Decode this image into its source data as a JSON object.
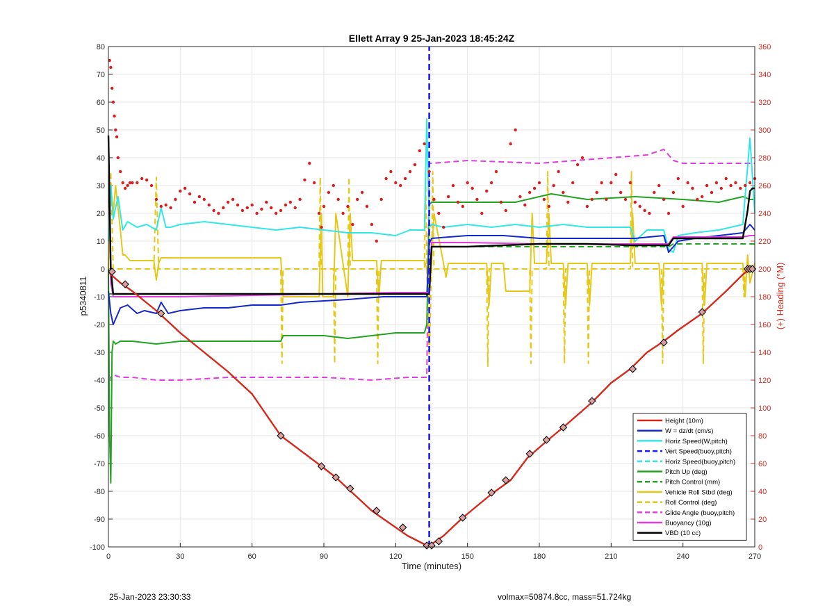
{
  "chart_data": {
    "type": "line",
    "title": "Ellett Array 9 25-Jan-2023 18:45:24Z",
    "xlabel": "Time (minutes)",
    "ylabel": "p5340811",
    "y2label": "(+) Heading (°M)",
    "xlim": [
      0,
      270
    ],
    "ylim": [
      -100,
      80
    ],
    "y2lim": [
      0,
      360
    ],
    "xticks": [
      "0",
      "30",
      "60",
      "90",
      "120",
      "150",
      "180",
      "210",
      "240",
      "270"
    ],
    "yticks": [
      "-100",
      "-90",
      "-80",
      "-70",
      "-60",
      "-50",
      "-40",
      "-30",
      "-20",
      "-10",
      "0",
      "10",
      "20",
      "30",
      "40",
      "50",
      "60",
      "70",
      "80"
    ],
    "y2ticks": [
      "0",
      "20",
      "40",
      "60",
      "80",
      "100",
      "120",
      "140",
      "160",
      "180",
      "200",
      "220",
      "240",
      "260",
      "280",
      "300",
      "320",
      "340",
      "360"
    ],
    "grid": true,
    "legend_position": "lower-right",
    "colors": {
      "height": "#d42a1c",
      "w": "#1428c8",
      "horiz": "#33e6e6",
      "vert_buoy": "#1a1aff",
      "horiz_buoy": "#33e6e6",
      "pitch": "#22a322",
      "pitch_ctrl": "#22a322",
      "roll": "#e5c81a",
      "roll_ctrl": "#e5c81a",
      "glide": "#e03ce0",
      "buoy": "#e03ce0",
      "vbd": "#000000",
      "heading": "#e01b1b"
    },
    "series": [
      {
        "name": "Height (10m)",
        "key": "height",
        "dash": false,
        "x": [
          0,
          1,
          5,
          10,
          20,
          30,
          40,
          50,
          60,
          72,
          89,
          95,
          100,
          110,
          120,
          125,
          133,
          135,
          140,
          148,
          160,
          168,
          175,
          183,
          190,
          202,
          210,
          218,
          225,
          232,
          238,
          248,
          258,
          265,
          268
        ],
        "y": [
          -1,
          -2,
          -5,
          -8,
          -15,
          -23,
          -30,
          -37,
          -45,
          -60,
          -71,
          -75,
          -79,
          -87,
          -93,
          -96,
          -99.5,
          -99,
          -96,
          -89.5,
          -81,
          -76,
          -68,
          -62,
          -57,
          -48,
          -41,
          -36,
          -30,
          -26,
          -22,
          -16,
          -8,
          -2,
          0
        ]
      },
      {
        "name": "W = dz/dt (cm/s)",
        "key": "w",
        "dash": false,
        "x": [
          0,
          1,
          2,
          5,
          8,
          12,
          15,
          20,
          22,
          25,
          30,
          40,
          50,
          60,
          72,
          80,
          100,
          115,
          125,
          132,
          133,
          134,
          135,
          150,
          165,
          180,
          200,
          220,
          232,
          234,
          236,
          238,
          245,
          255,
          265,
          268,
          270
        ],
        "y": [
          -8,
          -16,
          -20,
          -14,
          -13,
          -16,
          -15,
          -16,
          -12,
          -16,
          -15,
          -14,
          -14,
          -13,
          -13,
          -12,
          -11,
          -10,
          -10,
          -10,
          -10,
          9,
          11,
          12,
          12,
          11,
          11,
          11,
          12,
          6,
          8,
          10,
          11,
          12,
          13,
          16,
          14
        ]
      },
      {
        "name": "Horiz Speed(W,pitch)",
        "key": "horiz",
        "dash": false,
        "x": [
          0,
          1,
          2,
          4,
          6,
          8,
          12,
          16,
          20,
          22,
          24,
          26,
          30,
          40,
          50,
          60,
          70,
          80,
          90,
          100,
          110,
          120,
          126,
          132,
          133,
          134,
          135,
          140,
          150,
          160,
          170,
          180,
          190,
          200,
          210,
          218,
          220,
          225,
          232,
          234,
          236,
          238,
          245,
          255,
          265,
          268,
          270
        ],
        "y": [
          10,
          30,
          18,
          26,
          14,
          17,
          15,
          16,
          14,
          22,
          15,
          15,
          16,
          17,
          16,
          15,
          14,
          15,
          14,
          13,
          13,
          12,
          14,
          14,
          54,
          15,
          16,
          15,
          16,
          15,
          16,
          15,
          16,
          15,
          15,
          15,
          10,
          14,
          14,
          7,
          6,
          12,
          13,
          14,
          16,
          47,
          20
        ]
      },
      {
        "name": "Vert Speed(buoy,pitch)",
        "key": "vert_buoy",
        "dash": true,
        "x": [
          134,
          134
        ],
        "y": [
          -100,
          80
        ]
      },
      {
        "name": "Horiz Speed(buoy,pitch)",
        "key": "horiz_buoy",
        "dash": true,
        "x": [],
        "y": []
      },
      {
        "name": "Pitch Up (deg)",
        "key": "pitch",
        "dash": false,
        "x": [
          0,
          0.5,
          1,
          1.5,
          2,
          3,
          5,
          10,
          20,
          30,
          50,
          72,
          73,
          90,
          100,
          110,
          120,
          125,
          132,
          133,
          134,
          135,
          150,
          170,
          185,
          200,
          220,
          240,
          255,
          265,
          268,
          270
        ],
        "y": [
          0,
          -60,
          -77,
          -30,
          -26,
          -27,
          -26,
          -26,
          -27,
          -26,
          -26,
          -26,
          -24,
          -24,
          -25,
          -24,
          -23,
          -23,
          -23,
          -20,
          23,
          24,
          24,
          24,
          27,
          25,
          26,
          25,
          24,
          26,
          25,
          25
        ]
      },
      {
        "name": "Pitch Control (mm)",
        "key": "pitch_ctrl",
        "dash": true,
        "x": [
          0,
          133,
          134,
          135,
          160,
          234,
          236,
          270
        ],
        "y": [
          -9,
          -9,
          -9,
          8,
          8,
          8,
          9,
          9
        ]
      },
      {
        "name": "Vehicle Roll Stbd (deg)",
        "key": "roll",
        "dash": false,
        "x": [
          0,
          1,
          2,
          3,
          4,
          5,
          6,
          7,
          8,
          9,
          19,
          20,
          21,
          22,
          30,
          72,
          73,
          88,
          89,
          89.5,
          94,
          95,
          100,
          101,
          102,
          112,
          113,
          114,
          130,
          132,
          133,
          134,
          135,
          136,
          140,
          141,
          142,
          158,
          159,
          160,
          165,
          166,
          176,
          177,
          178,
          183,
          184,
          185,
          190,
          191,
          192,
          200,
          201,
          202,
          218,
          219,
          220,
          230,
          231,
          232,
          248,
          249,
          250,
          265,
          266,
          267,
          268,
          270
        ],
        "y": [
          0,
          30,
          20,
          30,
          22,
          14,
          5,
          5,
          4,
          3,
          3,
          -4,
          2,
          4,
          4,
          4,
          -10,
          -10,
          20,
          -10,
          -10,
          20,
          -10,
          20,
          3,
          3,
          -10,
          3,
          3,
          3,
          0,
          -10,
          3,
          20,
          2,
          -3,
          2,
          2,
          -13,
          2,
          2,
          -8,
          -8,
          20,
          2,
          2,
          20,
          2,
          2,
          -13,
          2,
          2,
          -13,
          2,
          2,
          20,
          2,
          2,
          -13,
          2,
          2,
          -13,
          2,
          2,
          -10,
          5,
          -5,
          2
        ]
      },
      {
        "name": "Roll Control (deg)",
        "key": "roll_ctrl",
        "dash": true,
        "x": [
          0,
          1,
          2,
          19,
          20,
          21,
          22,
          72,
          72.5,
          73,
          88,
          88.5,
          89,
          94,
          94.5,
          95,
          100,
          100.5,
          101,
          112,
          112.5,
          113,
          132,
          132.5,
          133,
          134,
          135,
          135.5,
          136,
          158,
          158.5,
          159,
          176,
          176.5,
          177,
          183,
          183.5,
          184,
          190,
          190.5,
          191,
          200,
          200.5,
          201,
          218,
          218.5,
          219,
          231,
          231.5,
          232,
          248,
          248.5,
          249,
          265,
          265.5,
          266,
          270
        ],
        "y": [
          0,
          35,
          0,
          0,
          33,
          0,
          0,
          0,
          -34,
          0,
          0,
          33,
          0,
          0,
          -34,
          0,
          0,
          33,
          0,
          0,
          -34,
          0,
          0,
          33,
          0,
          -33,
          0,
          35,
          0,
          0,
          -35,
          0,
          0,
          -34,
          0,
          0,
          35,
          0,
          0,
          -34,
          0,
          0,
          -34,
          0,
          0,
          35,
          0,
          0,
          -34,
          0,
          0,
          -34,
          0,
          0,
          -10,
          0,
          0
        ]
      },
      {
        "name": "Glide Angle (buoy,pitch)",
        "key": "glide",
        "dash": true,
        "x": [
          0,
          1,
          2,
          5,
          10,
          20,
          30,
          50,
          70,
          90,
          110,
          125,
          132,
          133,
          134,
          135,
          150,
          180,
          210,
          225,
          232,
          234,
          236,
          240,
          255,
          265,
          268,
          270
        ],
        "y": [
          -40,
          -39,
          -38,
          -39,
          -39,
          -40,
          -40,
          -39,
          -39,
          -39,
          -40,
          -39,
          -39,
          -39,
          38,
          38,
          39,
          38,
          40,
          41,
          43,
          41,
          39,
          38,
          38,
          38,
          38,
          38
        ]
      },
      {
        "name": "Buoyancy (10g)",
        "key": "buoy",
        "dash": false,
        "x": [
          0,
          1,
          2,
          5,
          30,
          60,
          90,
          120,
          133,
          134,
          135,
          150,
          180,
          200,
          218,
          234,
          236,
          265,
          268,
          270
        ],
        "y": [
          48,
          -5,
          -10,
          -10,
          -10,
          -9.5,
          -9,
          -8.5,
          -8.5,
          -8.5,
          9.5,
          9.5,
          9,
          9,
          9,
          9,
          11.5,
          11.5,
          12,
          12
        ]
      },
      {
        "name": "VBD (10 cc)",
        "key": "vbd",
        "dash": false,
        "x": [
          0,
          1,
          2,
          3,
          5,
          30,
          60,
          90,
          120,
          133,
          134,
          135,
          150,
          180,
          200,
          218,
          234,
          236,
          265,
          267,
          268,
          269,
          270
        ],
        "y": [
          48,
          0,
          -9,
          -9,
          -9,
          -9,
          -9,
          -9,
          -9,
          -9,
          -9,
          8,
          8,
          9,
          9,
          8.5,
          8.5,
          11,
          11,
          21,
          28,
          29,
          29
        ]
      }
    ],
    "heading": {
      "name": "(+) Heading (°M)",
      "key": "heading",
      "x": [
        0.5,
        1,
        1.5,
        2,
        2.5,
        3,
        3.5,
        4,
        5,
        6,
        7,
        8,
        9,
        10,
        12,
        14,
        16,
        18,
        20,
        22,
        24,
        26,
        28,
        30,
        32,
        34,
        36,
        38,
        40,
        42,
        44,
        46,
        48,
        50,
        52,
        54,
        56,
        58,
        60,
        62,
        64,
        66,
        68,
        70,
        72,
        74,
        76,
        78,
        80,
        82,
        84,
        86,
        88,
        89,
        90,
        92,
        94,
        96,
        98,
        100,
        102,
        104,
        106,
        108,
        110,
        112,
        114,
        116,
        118,
        120,
        122,
        124,
        126,
        128,
        130,
        132,
        134,
        136,
        138,
        140,
        142,
        144,
        146,
        148,
        150,
        152,
        154,
        156,
        158,
        160,
        162,
        164,
        166,
        168,
        170,
        172,
        174,
        176,
        178,
        180,
        182,
        184,
        186,
        188,
        190,
        192,
        194,
        196,
        198,
        200,
        202,
        204,
        206,
        208,
        210,
        212,
        214,
        216,
        218,
        220,
        222,
        224,
        226,
        228,
        230,
        232,
        234,
        236,
        238,
        240,
        242,
        244,
        246,
        248,
        250,
        252,
        254,
        256,
        258,
        260,
        262,
        264,
        266,
        268,
        270
      ],
      "y": [
        350,
        345,
        330,
        320,
        310,
        300,
        295,
        280,
        270,
        262,
        258,
        260,
        262,
        262,
        262,
        265,
        264,
        260,
        250,
        245,
        246,
        244,
        250,
        256,
        258,
        254,
        248,
        252,
        250,
        246,
        242,
        240,
        244,
        248,
        250,
        246,
        242,
        244,
        246,
        240,
        243,
        248,
        244,
        240,
        242,
        246,
        248,
        244,
        250,
        264,
        276,
        262,
        240,
        230,
        245,
        255,
        260,
        250,
        240,
        245,
        232,
        250,
        255,
        245,
        232,
        220,
        250,
        265,
        270,
        262,
        260,
        265,
        270,
        275,
        285,
        290,
        270,
        250,
        240,
        230,
        252,
        260,
        248,
        245,
        262,
        258,
        250,
        240,
        256,
        262,
        270,
        248,
        242,
        290,
        300,
        252,
        246,
        255,
        258,
        262,
        250,
        245,
        260,
        270,
        255,
        248,
        262,
        275,
        280,
        245,
        250,
        255,
        262,
        250,
        262,
        268,
        255,
        250,
        262,
        248,
        245,
        242,
        240,
        255,
        260,
        250,
        240,
        255,
        265,
        245,
        262,
        258,
        250,
        252,
        260,
        255,
        262,
        258,
        265,
        260,
        262,
        258,
        260,
        262,
        265
      ]
    },
    "markers": {
      "x": [
        1.5,
        7,
        22,
        72,
        89,
        95,
        101,
        112,
        123,
        133,
        135,
        138,
        148,
        160,
        166,
        176,
        183,
        190,
        202,
        219,
        232,
        248,
        267,
        268,
        269
      ],
      "y": [
        -1,
        -5.5,
        -16,
        -60,
        -71,
        -75,
        -79,
        -87,
        -93,
        -99.5,
        -99.5,
        -98,
        -89.5,
        -80.5,
        -76,
        -66.5,
        -61.5,
        -57,
        -47.5,
        -36,
        -26.5,
        -15.5,
        0,
        0,
        0
      ]
    }
  },
  "footer": {
    "timestamp": "25-Jan-2023 23:30:33",
    "params": "volmax=50874.8cc, mass=51.724kg"
  }
}
